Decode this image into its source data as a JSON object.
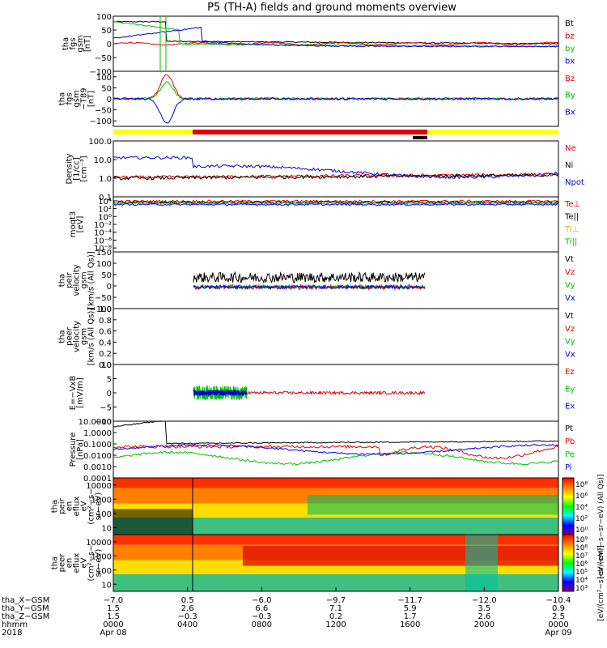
{
  "title": "P5 (TH-A) fields and ground moments overview",
  "colors": {
    "black": "#000000",
    "red": "#e00000",
    "green": "#00c000",
    "blue": "#0000e0",
    "yellow": "#ffff00"
  },
  "chart_data": [
    {
      "type": "line",
      "ylabel": [
        "tha",
        "fgs",
        "gsm",
        "[nT]"
      ],
      "ylim": [
        -100,
        100
      ],
      "yticks": [
        "100",
        "50",
        "0",
        "−50",
        "−100"
      ],
      "legend": [
        {
          "label": "Bt",
          "color": "black"
        },
        {
          "label": "bz",
          "color": "red"
        },
        {
          "label": "by",
          "color": "green"
        },
        {
          "label": "bx",
          "color": "blue"
        }
      ]
    },
    {
      "type": "line",
      "ylabel": [
        "tha",
        "fgs",
        "gsm",
        "−T89",
        "[nT]"
      ],
      "ylim": [
        -120,
        120
      ],
      "yticks": [
        "100",
        "50",
        "0",
        "−50",
        "−100"
      ],
      "legend": [
        {
          "label": "Bz",
          "color": "red"
        },
        {
          "label": "By",
          "color": "green"
        },
        {
          "label": "Bx",
          "color": "blue"
        }
      ]
    },
    {
      "type": "line",
      "ylabel": [
        "Density",
        "[1/cc]",
        "[cm⁻³]"
      ],
      "yscale": "log",
      "yticks": [
        "100.0",
        "10.0",
        "1.0",
        "0.1"
      ],
      "legend": [
        {
          "label": "Ne",
          "color": "red"
        },
        {
          "label": "Ni",
          "color": "black"
        },
        {
          "label": "Npot",
          "color": "blue"
        }
      ]
    },
    {
      "type": "line",
      "ylabel": [
        "moqt3",
        "[eV]"
      ],
      "yscale": "log",
      "yticks": [
        "10⁴",
        "10²",
        "10⁰",
        "10⁻²",
        "10⁻⁴",
        "10⁻⁶",
        "10⁻⁸"
      ],
      "legend": [
        {
          "label": "Te⊥",
          "color": "red"
        },
        {
          "label": "Te||",
          "color": "black"
        },
        {
          "label": "Ti⊥",
          "color": "yellow"
        },
        {
          "label": "Ti||",
          "color": "green"
        }
      ]
    },
    {
      "type": "line",
      "ylabel": [
        "tha",
        "peir",
        "velocity",
        "gsm",
        "[km/s (All Qs)]"
      ],
      "ylim": [
        -100,
        150
      ],
      "yticks": [
        "150",
        "100",
        "50",
        "0",
        "−50",
        "−100"
      ],
      "legend": [
        {
          "label": "Vt",
          "color": "black"
        },
        {
          "label": "Vz",
          "color": "red"
        },
        {
          "label": "Vy",
          "color": "green"
        },
        {
          "label": "Vx",
          "color": "blue"
        }
      ]
    },
    {
      "type": "line",
      "ylabel": [
        "tha",
        "peer",
        "velocity",
        "gsm",
        "[km/s (All Qs)]"
      ],
      "ylim": [
        0,
        1
      ],
      "yticks": [
        "1.0",
        "0.8",
        "0.6",
        "0.4",
        "0.2",
        "0.0"
      ],
      "legend": [
        {
          "label": "Vt",
          "color": "black"
        },
        {
          "label": "Vz",
          "color": "red"
        },
        {
          "label": "Vy",
          "color": "green"
        },
        {
          "label": "Vx",
          "color": "blue"
        }
      ]
    },
    {
      "type": "line",
      "ylabel": [
        "E=−VxB",
        "[mV/m]"
      ],
      "ylim": [
        -10,
        10
      ],
      "yticks": [
        "10",
        "5",
        "0",
        "−5",
        "−10"
      ],
      "legend": [
        {
          "label": "Ez",
          "color": "red"
        },
        {
          "label": "Ey",
          "color": "green"
        },
        {
          "label": "Ex",
          "color": "blue"
        }
      ]
    },
    {
      "type": "line",
      "ylabel": [
        "Pressure",
        "[nPa]"
      ],
      "yscale": "log",
      "yticks": [
        "10.0000",
        "1.0000",
        "0.1000",
        "0.0100",
        "0.0010",
        "0.0001"
      ],
      "legend": [
        {
          "label": "Pt",
          "color": "black"
        },
        {
          "label": "Pb",
          "color": "red"
        },
        {
          "label": "Pe",
          "color": "green"
        },
        {
          "label": "Pi",
          "color": "blue"
        }
      ]
    },
    {
      "type": "heatmap",
      "ylabel": [
        "tha",
        "peir",
        "en",
        "eflux",
        "eV",
        "(cm²−s−",
        "sr−eV)"
      ],
      "yticks": [
        "10000",
        "1000",
        "100",
        "10"
      ],
      "colorbar_ticks": [
        "10⁸",
        "10⁶",
        "10⁴",
        "10²",
        "10⁰"
      ]
    },
    {
      "type": "heatmap",
      "ylabel": [
        "tha",
        "peer",
        "en",
        "eflux",
        "eV",
        "(cm²−s−",
        "sr−eV)"
      ],
      "yticks": [
        "10000",
        "1000",
        "100",
        "10"
      ],
      "colorbar_ticks": [
        "10⁹",
        "10⁸",
        "10⁷",
        "10⁶",
        "10⁵",
        "10⁴",
        "10³"
      ]
    }
  ],
  "colorbar_label": "[eV/(cm²−s−sr−eV)]",
  "colorbar_label_top": "[eV/(cm²−s−sr−eV) (All Qs)]",
  "x_axis": {
    "rows": [
      {
        "label": "tha_X−GSM",
        "values": [
          "−7.0",
          "0.5",
          "−6.0",
          "−9.7",
          "−11.7",
          "−12.0",
          "−10.4"
        ]
      },
      {
        "label": "tha_Y−GSM",
        "values": [
          "1.5",
          "2.6",
          "6.6",
          "7.1",
          "5.9",
          "3.5",
          "0.9"
        ]
      },
      {
        "label": "tha_Z−GSM",
        "values": [
          "1.5",
          "−0.3",
          "−0.3",
          "0.2",
          "1.7",
          "2.6",
          "2.5"
        ]
      },
      {
        "label": "hhmm",
        "values": [
          "0000",
          "0400",
          "0800",
          "1200",
          "1600",
          "2000",
          "0000"
        ]
      }
    ],
    "year": "2018",
    "date_start": "Apr 08",
    "date_end": "Apr 09"
  }
}
